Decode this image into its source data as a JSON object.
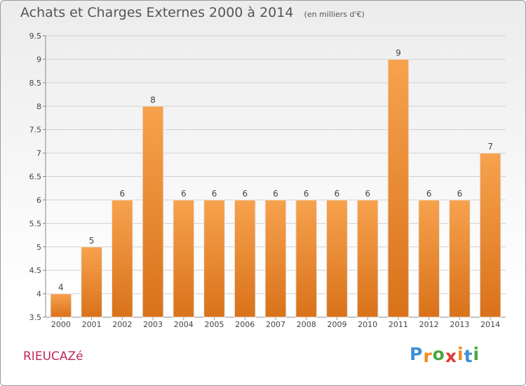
{
  "header": {
    "title": "Achats et Charges Externes 2000 à 2014",
    "unit": "(en milliers d'€)"
  },
  "footer": {
    "place": "RIEUCAZé",
    "logo_letters": [
      "P",
      "r",
      "o",
      "x",
      "i",
      "t",
      "i"
    ],
    "logo_colors": [
      "#3d8fd6",
      "#f08c1e",
      "#4aa83c",
      "#e23a3a",
      "#f08c1e",
      "#3d8fd6",
      "#4aa83c"
    ]
  },
  "colors": {
    "bar_light": "#f7a24e",
    "bar_dark": "#d9721a",
    "grid": "#d0d0d0",
    "axis": "#888888"
  },
  "chart_data": {
    "type": "bar",
    "title": "Achats et Charges Externes 2000 à 2014",
    "subtitle": "(en milliers d'€)",
    "categories": [
      "2000",
      "2001",
      "2002",
      "2003",
      "2004",
      "2005",
      "2006",
      "2007",
      "2008",
      "2009",
      "2010",
      "2011",
      "2012",
      "2013",
      "2014"
    ],
    "values": [
      4,
      5,
      6,
      8,
      6,
      6,
      6,
      6,
      6,
      6,
      6,
      9,
      6,
      6,
      7
    ],
    "data_labels": [
      "4",
      "5",
      "6",
      "8",
      "6",
      "6",
      "6",
      "6",
      "6",
      "6",
      "6",
      "9",
      "6",
      "6",
      "7"
    ],
    "ylim": [
      3.5,
      9.5
    ],
    "yticks": [
      "3.5",
      "4",
      "4.5",
      "5",
      "5.5",
      "6",
      "6.5",
      "7",
      "7.5",
      "8",
      "8.5",
      "9",
      "9.5"
    ],
    "grid": true,
    "xlabel": "",
    "ylabel": ""
  }
}
